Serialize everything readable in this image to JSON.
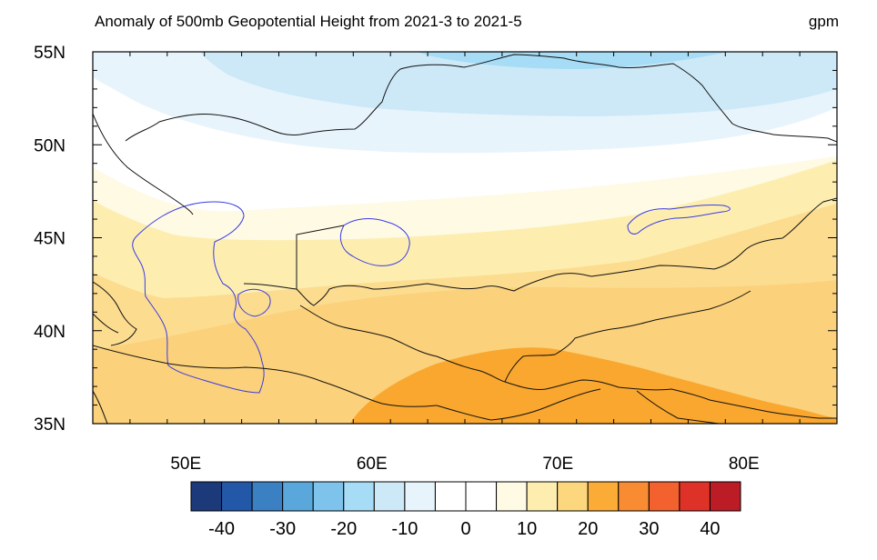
{
  "title": "Anomaly of 500mb Geopotential Height from 2021-3 to 2021-5",
  "units": "gpm",
  "map": {
    "region": "Central Asia",
    "lon_range": [
      45,
      85
    ],
    "lat_range": [
      35,
      55
    ],
    "lat_labels": [
      "55N",
      "50N",
      "45N",
      "40N",
      "35N"
    ],
    "lat_values": [
      55,
      50,
      45,
      40,
      35
    ],
    "lon_labels": [
      "50E",
      "60E",
      "70E",
      "80E"
    ],
    "lon_values": [
      50,
      60,
      70,
      80
    ]
  },
  "colorbar": {
    "labels": [
      "-40",
      "-30",
      "-20",
      "-10",
      "0",
      "10",
      "20",
      "30",
      "40"
    ],
    "label_values": [
      -40,
      -30,
      -20,
      -10,
      0,
      10,
      20,
      30,
      40
    ],
    "colors": [
      "#1c3a7a",
      "#2358a8",
      "#3c80c4",
      "#5aa7dc",
      "#7ec3ec",
      "#a6dcf5",
      "#cde9f8",
      "#e8f4fc",
      "#ffffff",
      "#ffffff",
      "#fefae4",
      "#fdeeb0",
      "#fdd77d",
      "#fbac36",
      "#f98b33",
      "#f2612e",
      "#de3229",
      "#bb1c25"
    ]
  },
  "field_colors": {
    "neg20": "#a6dcf5",
    "neg10": "#cde9f8",
    "neg5": "#e8f4fc",
    "zero": "#ffffff",
    "pos5": "#fefae4",
    "pos10": "#fdeeb0",
    "pos15": "#fcdc8f",
    "pos20": "#fbd17b",
    "pos25": "#f9a72f"
  }
}
